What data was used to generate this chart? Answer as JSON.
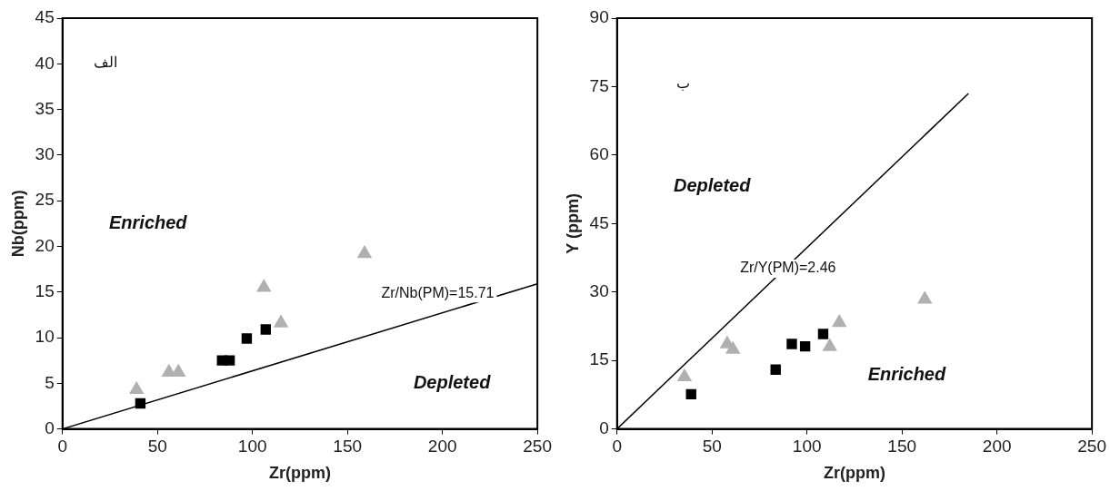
{
  "chart_data": [
    {
      "type": "scatter",
      "xlabel": "Zr(ppm)",
      "ylabel": "Nb(ppm)",
      "xlim": [
        0,
        250
      ],
      "xticks": [
        0,
        50,
        100,
        150,
        200,
        250
      ],
      "ylim": [
        0,
        45
      ],
      "yticks": [
        0,
        5,
        10,
        15,
        20,
        25,
        30,
        35,
        40,
        45
      ],
      "grid": false,
      "legend": false,
      "series": [
        {
          "color": "#b0b0b0",
          "marker": "triangle",
          "x": [
            39,
            56,
            61,
            106,
            115,
            159
          ],
          "values": [
            4.3,
            6.2,
            6.2,
            15.5,
            11.6,
            19.2
          ]
        },
        {
          "color": "#000000",
          "marker": "square",
          "x": [
            41,
            84,
            88,
            97,
            107
          ],
          "values": [
            2.8,
            7.5,
            7.5,
            9.9,
            10.9
          ]
        },
        {
          "type": "line",
          "color": "#000000",
          "marker": "none",
          "x": [
            0,
            250
          ],
          "values": [
            0,
            15.9
          ]
        }
      ],
      "annotations": [
        "الف",
        "Enriched",
        "Depleted",
        "Zr/Nb(PM)=15.71"
      ]
    },
    {
      "type": "scatter",
      "xlabel": "Zr(ppm)",
      "ylabel": "Y (ppm)",
      "xlim": [
        0,
        250
      ],
      "xticks": [
        0,
        50,
        100,
        150,
        200,
        250
      ],
      "ylim": [
        0,
        90
      ],
      "yticks": [
        0,
        15,
        30,
        45,
        60,
        75,
        90
      ],
      "grid": false,
      "legend": false,
      "series": [
        {
          "color": "#b0b0b0",
          "marker": "triangle",
          "x": [
            35.5,
            58,
            61,
            112,
            117,
            162
          ],
          "values": [
            11.4,
            18.6,
            17.4,
            18.0,
            23.3,
            28.4
          ]
        },
        {
          "color": "#000000",
          "marker": "square",
          "x": [
            39,
            83.5,
            92,
            99,
            108.5
          ],
          "values": [
            7.6,
            13.0,
            18.6,
            18.1,
            20.8
          ]
        },
        {
          "type": "line",
          "color": "#000000",
          "marker": "none",
          "x": [
            0,
            185
          ],
          "values": [
            0,
            73.5
          ]
        }
      ],
      "annotations": [
        "ب",
        "Depleted",
        "Enriched",
        "Zr/Y(PM)=2.46"
      ]
    }
  ]
}
